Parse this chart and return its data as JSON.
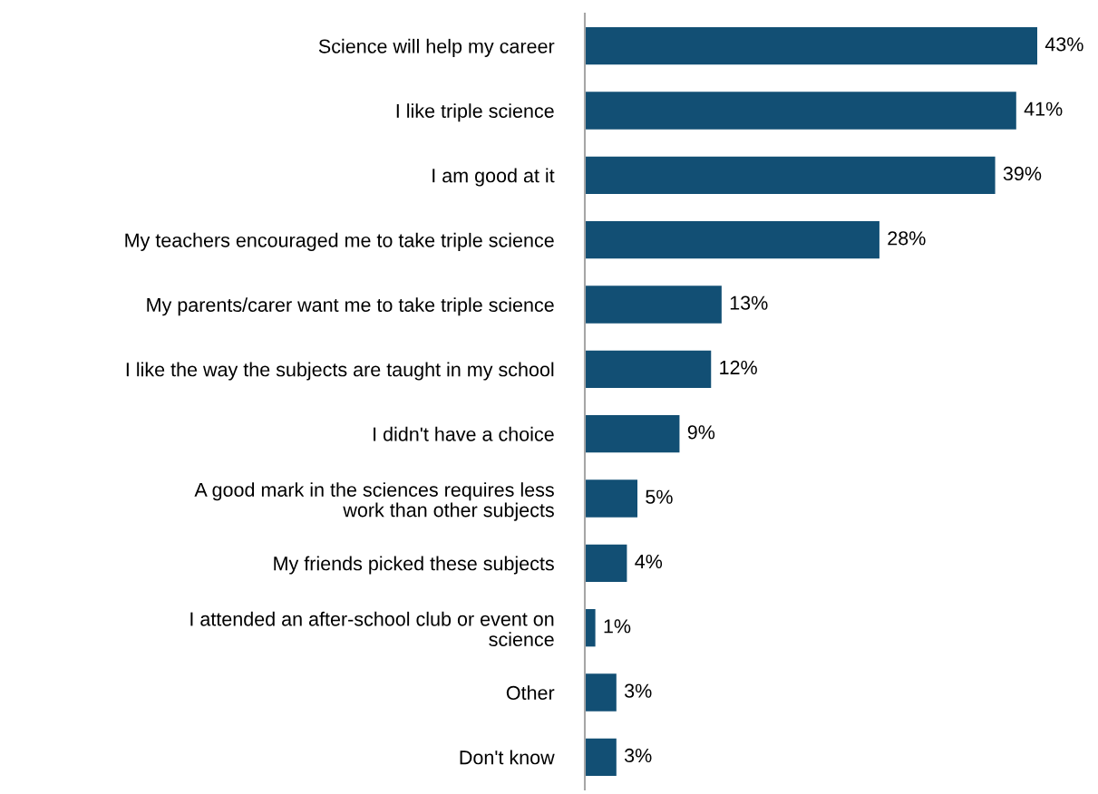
{
  "chart_data": {
    "type": "bar",
    "orientation": "horizontal",
    "tick_labels": "y",
    "grid": false,
    "legend": false,
    "categories": [
      "Science will help my career",
      "I like triple science",
      "I am good at it",
      "My teachers encouraged me to take triple science",
      "My parents/carer want me to take triple science",
      "I like the way the subjects are taught in my school",
      "I didn't have a choice",
      "A good mark in the sciences requires less\nwork than other subjects",
      "My friends picked these subjects",
      "I attended an after-school club or event on\nscience",
      "Other",
      "Don't know"
    ],
    "values": [
      43,
      41,
      39,
      28,
      13,
      12,
      9,
      5,
      4,
      1,
      3,
      3
    ],
    "value_labels": [
      "43%",
      "41%",
      "39%",
      "28%",
      "13%",
      "12%",
      "9%",
      "5%",
      "4%",
      "1%",
      "3%",
      "3%"
    ],
    "color": "#124f74"
  }
}
